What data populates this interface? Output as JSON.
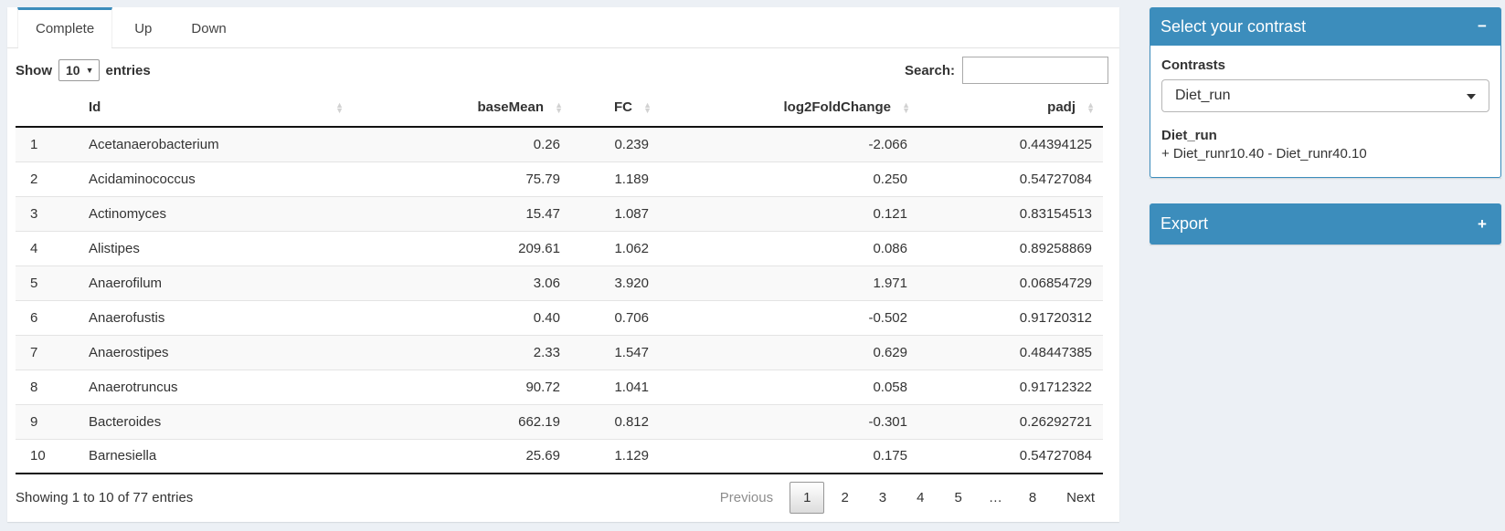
{
  "colors": {
    "primary": "#3c8dbc",
    "page_bg": "#ecf0f5"
  },
  "tabs": [
    {
      "label": "Complete",
      "active": true
    },
    {
      "label": "Up",
      "active": false
    },
    {
      "label": "Down",
      "active": false
    }
  ],
  "length_control": {
    "label_before": "Show",
    "selected": "10",
    "label_after": "entries"
  },
  "search": {
    "label": "Search:",
    "value": ""
  },
  "table": {
    "columns": [
      {
        "key": "num",
        "label": "",
        "sortable": false,
        "align": "left"
      },
      {
        "key": "id",
        "label": "Id",
        "sortable": true,
        "align": "left"
      },
      {
        "key": "baseMean",
        "label": "baseMean",
        "sortable": true,
        "align": "right"
      },
      {
        "key": "fc",
        "label": "FC",
        "sortable": true,
        "align": "right"
      },
      {
        "key": "log2FoldChange",
        "label": "log2FoldChange",
        "sortable": true,
        "align": "right"
      },
      {
        "key": "padj",
        "label": "padj",
        "sortable": true,
        "align": "right"
      }
    ],
    "rows": [
      {
        "num": "1",
        "id": "Acetanaerobacterium",
        "baseMean": "0.26",
        "fc": "0.239",
        "log2FoldChange": "-2.066",
        "padj": "0.44394125"
      },
      {
        "num": "2",
        "id": "Acidaminococcus",
        "baseMean": "75.79",
        "fc": "1.189",
        "log2FoldChange": "0.250",
        "padj": "0.54727084"
      },
      {
        "num": "3",
        "id": "Actinomyces",
        "baseMean": "15.47",
        "fc": "1.087",
        "log2FoldChange": "0.121",
        "padj": "0.83154513"
      },
      {
        "num": "4",
        "id": "Alistipes",
        "baseMean": "209.61",
        "fc": "1.062",
        "log2FoldChange": "0.086",
        "padj": "0.89258869"
      },
      {
        "num": "5",
        "id": "Anaerofilum",
        "baseMean": "3.06",
        "fc": "3.920",
        "log2FoldChange": "1.971",
        "padj": "0.06854729"
      },
      {
        "num": "6",
        "id": "Anaerofustis",
        "baseMean": "0.40",
        "fc": "0.706",
        "log2FoldChange": "-0.502",
        "padj": "0.91720312"
      },
      {
        "num": "7",
        "id": "Anaerostipes",
        "baseMean": "2.33",
        "fc": "1.547",
        "log2FoldChange": "0.629",
        "padj": "0.48447385"
      },
      {
        "num": "8",
        "id": "Anaerotruncus",
        "baseMean": "90.72",
        "fc": "1.041",
        "log2FoldChange": "0.058",
        "padj": "0.91712322"
      },
      {
        "num": "9",
        "id": "Bacteroides",
        "baseMean": "662.19",
        "fc": "0.812",
        "log2FoldChange": "-0.301",
        "padj": "0.26292721"
      },
      {
        "num": "10",
        "id": "Barnesiella",
        "baseMean": "25.69",
        "fc": "1.129",
        "log2FoldChange": "0.175",
        "padj": "0.54727084"
      }
    ]
  },
  "info": "Showing 1 to 10 of 77 entries",
  "pagination": {
    "previous": "Previous",
    "pages": [
      "1",
      "2",
      "3",
      "4",
      "5",
      "…",
      "8"
    ],
    "active_page": "1",
    "next": "Next"
  },
  "sidebar": {
    "contrast_box": {
      "title": "Select your contrast",
      "collapse_icon": "−",
      "contrasts_label": "Contrasts",
      "selected_contrast": "Diet_run",
      "contrast_name": "Diet_run",
      "contrast_formula": "+ Diet_runr10.40 - Diet_runr40.10"
    },
    "export_box": {
      "title": "Export",
      "expand_icon": "+"
    }
  }
}
